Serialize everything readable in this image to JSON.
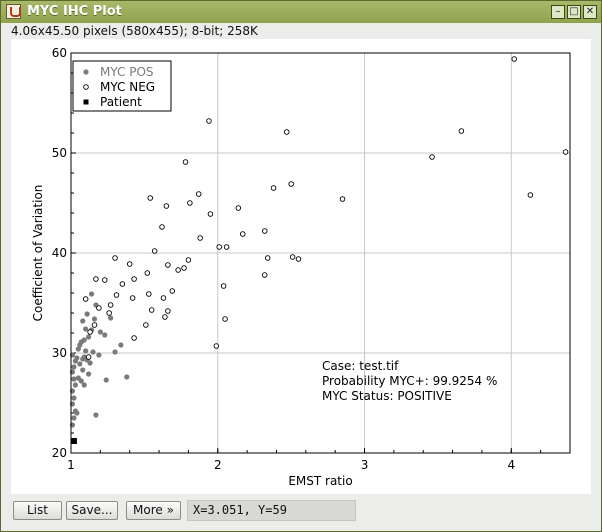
{
  "window": {
    "title": "MYC IHC Plot",
    "subtitle": "4.06x45.50 pixels (580x455); 8-bit; 258K"
  },
  "buttons": {
    "list": "List",
    "save": "Save...",
    "more": "More »"
  },
  "status": {
    "coords": "X=3.051,  Y=59"
  },
  "colors": {
    "pos": "#7a7a7a",
    "patient": "#000000",
    "grid": "#c8c8c8"
  },
  "annotation": {
    "case": "Case: test.tif",
    "probability": "Probability MYC+: 99.9254 %",
    "status": "MYC Status: POSITIVE"
  },
  "chart_data": {
    "type": "scatter",
    "xlabel": "EMST ratio",
    "ylabel": "Coefficient of Variation",
    "xlim": [
      1,
      4.4
    ],
    "ylim": [
      20,
      60
    ],
    "xticks": [
      1,
      2,
      3,
      4
    ],
    "yticks": [
      20,
      30,
      40,
      50,
      60
    ],
    "grid": true,
    "legend_position": "top-left",
    "series": [
      {
        "name": "MYC POS",
        "marker": "filled-circle",
        "color": "#7a7a7a",
        "points": [
          [
            1.01,
            28.1
          ],
          [
            1.02,
            28.6
          ],
          [
            1.03,
            29.2
          ],
          [
            1.01,
            29.8
          ],
          [
            1.02,
            27.4
          ],
          [
            1.03,
            26.8
          ],
          [
            1.01,
            26.2
          ],
          [
            1.02,
            25.5
          ],
          [
            1.01,
            24.9
          ],
          [
            1.03,
            24.2
          ],
          [
            1.02,
            23.5
          ],
          [
            1.04,
            24.0
          ],
          [
            1.01,
            22.8
          ],
          [
            1.05,
            27.5
          ],
          [
            1.06,
            28.9
          ],
          [
            1.05,
            30.4
          ],
          [
            1.07,
            31.1
          ],
          [
            1.08,
            28.3
          ],
          [
            1.09,
            29.6
          ],
          [
            1.1,
            30.2
          ],
          [
            1.12,
            31.6
          ],
          [
            1.1,
            32.4
          ],
          [
            1.08,
            33.2
          ],
          [
            1.11,
            33.9
          ],
          [
            1.14,
            32.3
          ],
          [
            1.15,
            30.1
          ],
          [
            1.13,
            29.0
          ],
          [
            1.12,
            27.9
          ],
          [
            1.09,
            26.8
          ],
          [
            1.07,
            27.2
          ],
          [
            1.04,
            29.5
          ],
          [
            1.06,
            30.8
          ],
          [
            1.09,
            31.3
          ],
          [
            1.16,
            33.4
          ],
          [
            1.17,
            34.8
          ],
          [
            1.19,
            29.8
          ],
          [
            1.2,
            32.1
          ],
          [
            1.23,
            31.8
          ],
          [
            1.27,
            33.5
          ],
          [
            1.3,
            30.1
          ],
          [
            1.34,
            30.8
          ],
          [
            1.38,
            27.6
          ],
          [
            1.24,
            27.3
          ],
          [
            1.17,
            23.8
          ],
          [
            1.14,
            35.9
          ],
          [
            1.11,
            29.3
          ],
          [
            1.08,
            29.4
          ]
        ]
      },
      {
        "name": "MYC NEG",
        "marker": "open-circle",
        "color": "#000000",
        "points": [
          [
            1.94,
            53.2
          ],
          [
            2.47,
            52.1
          ],
          [
            3.66,
            52.2
          ],
          [
            4.02,
            59.4
          ],
          [
            4.37,
            50.1
          ],
          [
            4.13,
            45.8
          ],
          [
            3.46,
            49.6
          ],
          [
            2.85,
            45.4
          ],
          [
            2.5,
            46.9
          ],
          [
            2.38,
            46.5
          ],
          [
            2.32,
            42.2
          ],
          [
            2.34,
            39.5
          ],
          [
            2.32,
            37.8
          ],
          [
            2.51,
            39.6
          ],
          [
            2.55,
            39.4
          ],
          [
            2.17,
            41.9
          ],
          [
            2.14,
            44.5
          ],
          [
            1.87,
            45.9
          ],
          [
            1.78,
            49.1
          ],
          [
            1.81,
            45.0
          ],
          [
            1.54,
            45.5
          ],
          [
            1.65,
            44.7
          ],
          [
            1.95,
            43.9
          ],
          [
            2.01,
            40.6
          ],
          [
            2.06,
            40.6
          ],
          [
            1.88,
            41.5
          ],
          [
            1.62,
            42.6
          ],
          [
            1.57,
            40.2
          ],
          [
            1.66,
            38.8
          ],
          [
            1.73,
            38.3
          ],
          [
            1.8,
            39.3
          ],
          [
            1.77,
            38.5
          ],
          [
            1.69,
            36.2
          ],
          [
            1.63,
            35.5
          ],
          [
            1.66,
            34.2
          ],
          [
            1.53,
            35.9
          ],
          [
            1.4,
            38.9
          ],
          [
            1.43,
            37.4
          ],
          [
            1.52,
            38.0
          ],
          [
            1.3,
            39.5
          ],
          [
            1.35,
            36.9
          ],
          [
            1.31,
            35.8
          ],
          [
            1.42,
            35.5
          ],
          [
            1.27,
            34.8
          ],
          [
            1.23,
            37.3
          ],
          [
            1.17,
            37.4
          ],
          [
            1.19,
            34.5
          ],
          [
            1.13,
            32.1
          ],
          [
            1.51,
            32.8
          ],
          [
            1.55,
            34.3
          ],
          [
            1.64,
            33.6
          ],
          [
            1.43,
            31.5
          ],
          [
            2.04,
            36.7
          ],
          [
            2.05,
            33.4
          ],
          [
            1.99,
            30.7
          ],
          [
            1.1,
            35.4
          ],
          [
            1.12,
            29.6
          ],
          [
            1.16,
            32.8
          ],
          [
            1.26,
            34.0
          ]
        ]
      },
      {
        "name": "Patient",
        "marker": "filled-square",
        "color": "#000000",
        "points": [
          [
            1.02,
            21.2
          ]
        ]
      }
    ]
  }
}
